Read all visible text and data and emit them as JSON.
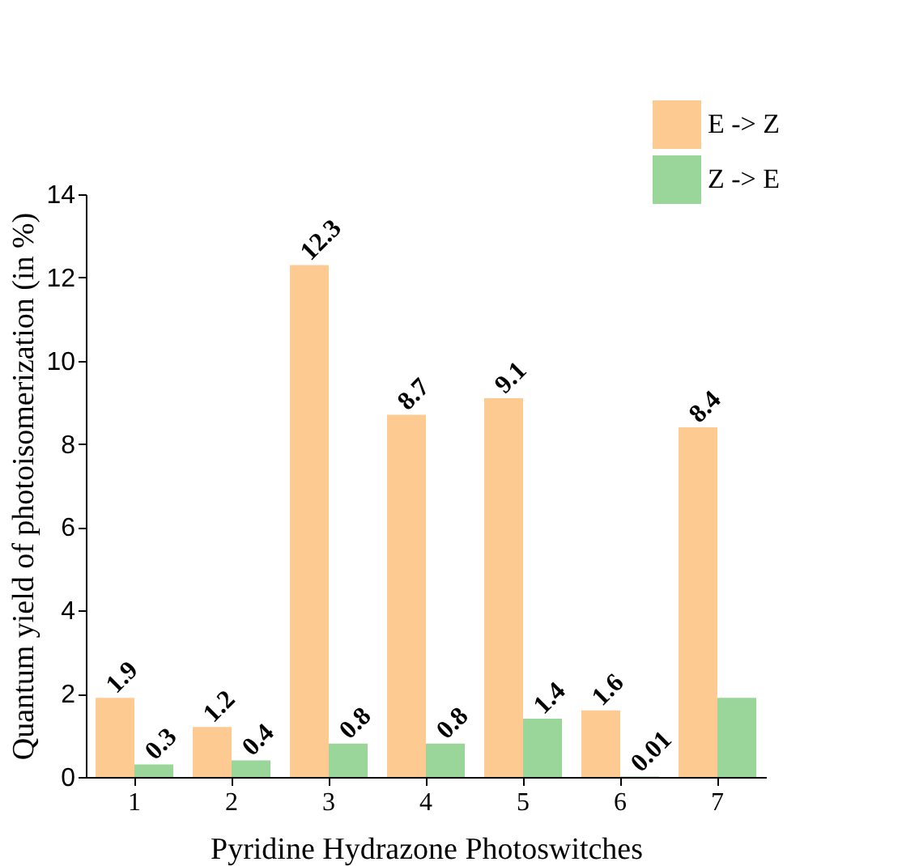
{
  "chart_data": {
    "type": "bar",
    "xlabel": "Pyridine Hydrazone Photoswitches",
    "ylabel": "Quantum yield of photoisomerization (in %)",
    "categories": [
      "1",
      "2",
      "3",
      "4",
      "5",
      "6",
      "7"
    ],
    "series": [
      {
        "name": "E -> Z",
        "color": "#fdca92",
        "values": [
          1.9,
          1.2,
          12.3,
          8.7,
          9.1,
          1.6,
          8.4
        ],
        "value_labels": [
          "1.9",
          "1.2",
          "12.3",
          "8.7",
          "9.1",
          "1.6",
          "8.4"
        ]
      },
      {
        "name": "Z -> E",
        "color": "#9ad69a",
        "values": [
          0.3,
          0.4,
          0.8,
          0.8,
          1.4,
          0.01,
          1.9
        ],
        "value_labels": [
          "0.3",
          "0.4",
          "0.8",
          "0.8",
          "1.4",
          "0.01",
          null
        ]
      }
    ],
    "ylim": [
      0,
      14
    ],
    "yticks": [
      0,
      2,
      4,
      6,
      8,
      10,
      12,
      14
    ],
    "grid": false,
    "legend": "top right"
  }
}
